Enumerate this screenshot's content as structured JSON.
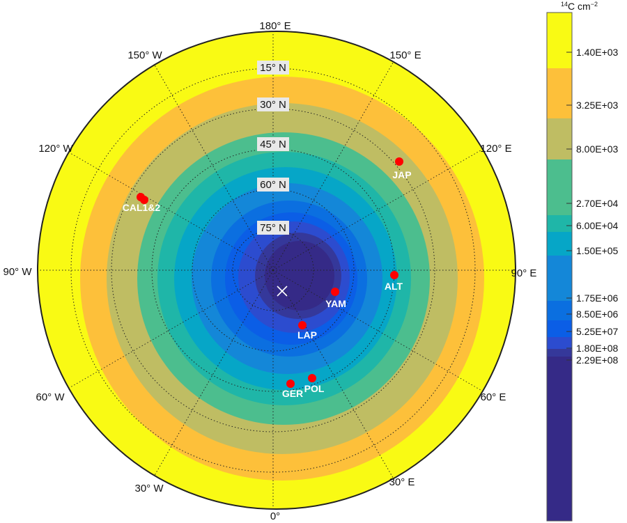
{
  "colorbar": {
    "title_sup": "14",
    "title": "C cm",
    "title_exp": "−2",
    "colors": [
      "#f9fa14",
      "#fdc03a",
      "#bfbd63",
      "#4cbe8e",
      "#1fb6a8",
      "#06a6c7",
      "#1487d8",
      "#0b6fe0",
      "#0b5ee6",
      "#2c4ccf",
      "#35389a",
      "#352a87"
    ],
    "ticks": [
      "1.40E+03",
      "3.25E+03",
      "8.00E+03",
      "2.70E+04",
      "6.00E+04",
      "1.50E+05",
      "1.75E+06",
      "8.50E+06",
      "5.25E+07",
      "1.80E+08",
      "2.29E+08"
    ]
  },
  "map": {
    "longitude_labels": [
      "180° E",
      "150° E",
      "120° E",
      "90° E",
      "60° E",
      "30° E",
      "0°",
      "30° W",
      "60° W",
      "90° W",
      "120° W",
      "150° W"
    ],
    "latitude_labels": [
      "15° N",
      "30° N",
      "45° N",
      "60° N",
      "75° N"
    ],
    "source_marker": "x-icon",
    "stations": [
      {
        "label": "JAP"
      },
      {
        "label": "CAL1&2"
      },
      {
        "label": "ALT"
      },
      {
        "label": "YAM"
      },
      {
        "label": "LAP"
      },
      {
        "label": "POL"
      },
      {
        "label": "GER"
      }
    ],
    "station_color": "#ff0000"
  }
}
